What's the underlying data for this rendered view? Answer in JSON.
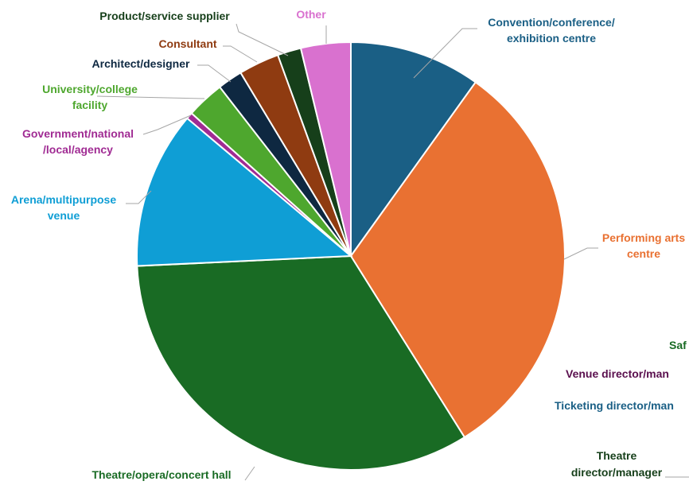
{
  "chart_data": {
    "type": "pie",
    "title": "",
    "slices": [
      {
        "name": "Convention/conference/ exhibition centre",
        "value": 10,
        "color": "#1a5f85",
        "label_lines": [
          "Convention/conference/",
          "exhibition centre"
        ]
      },
      {
        "name": "Performing arts centre",
        "value": 31.5,
        "color": "#e97132",
        "label_lines": [
          "Performing arts",
          "centre"
        ]
      },
      {
        "name": "Theatre/opera/concert hall",
        "value": 33.5,
        "color": "#196b24",
        "label_lines": [
          "Theatre/opera/concert hall"
        ]
      },
      {
        "name": "Arena/multipurpose venue",
        "value": 12,
        "color": "#0f9ed5",
        "label_lines": [
          "Arena/multipurpose",
          "venue"
        ]
      },
      {
        "name": "Government/national /local/agency",
        "value": 0.5,
        "color": "#a02b93",
        "label_lines": [
          "Government/national",
          "/local/agency"
        ]
      },
      {
        "name": "University/college facility",
        "value": 2.9,
        "color": "#4ea72e",
        "label_lines": [
          "University/college",
          "facility"
        ]
      },
      {
        "name": "Architect/designer",
        "value": 1.9,
        "color": "#0e2841",
        "label_lines": [
          "Architect/designer"
        ]
      },
      {
        "name": "Consultant",
        "value": 3.1,
        "color": "#8f3b11",
        "label_lines": [
          "Consultant"
        ]
      },
      {
        "name": "Product/service supplier",
        "value": 1.8,
        "color": "#163f1a",
        "label_lines": [
          "Product/service supplier"
        ]
      },
      {
        "name": "Other",
        "value": 3.8,
        "color": "#d971cf",
        "label_lines": [
          "Other"
        ]
      }
    ],
    "cropped_labels": [
      {
        "lines": [
          "Saf"
        ],
        "color": "#196b24"
      },
      {
        "lines": [
          "Venue director/man"
        ],
        "color": "#5a0f4e"
      },
      {
        "lines": [
          "Ticketing director/man"
        ],
        "color": "#1a5f85"
      },
      {
        "lines": [
          "Theatre",
          "director/manager"
        ],
        "color": "#163f1a"
      }
    ]
  }
}
